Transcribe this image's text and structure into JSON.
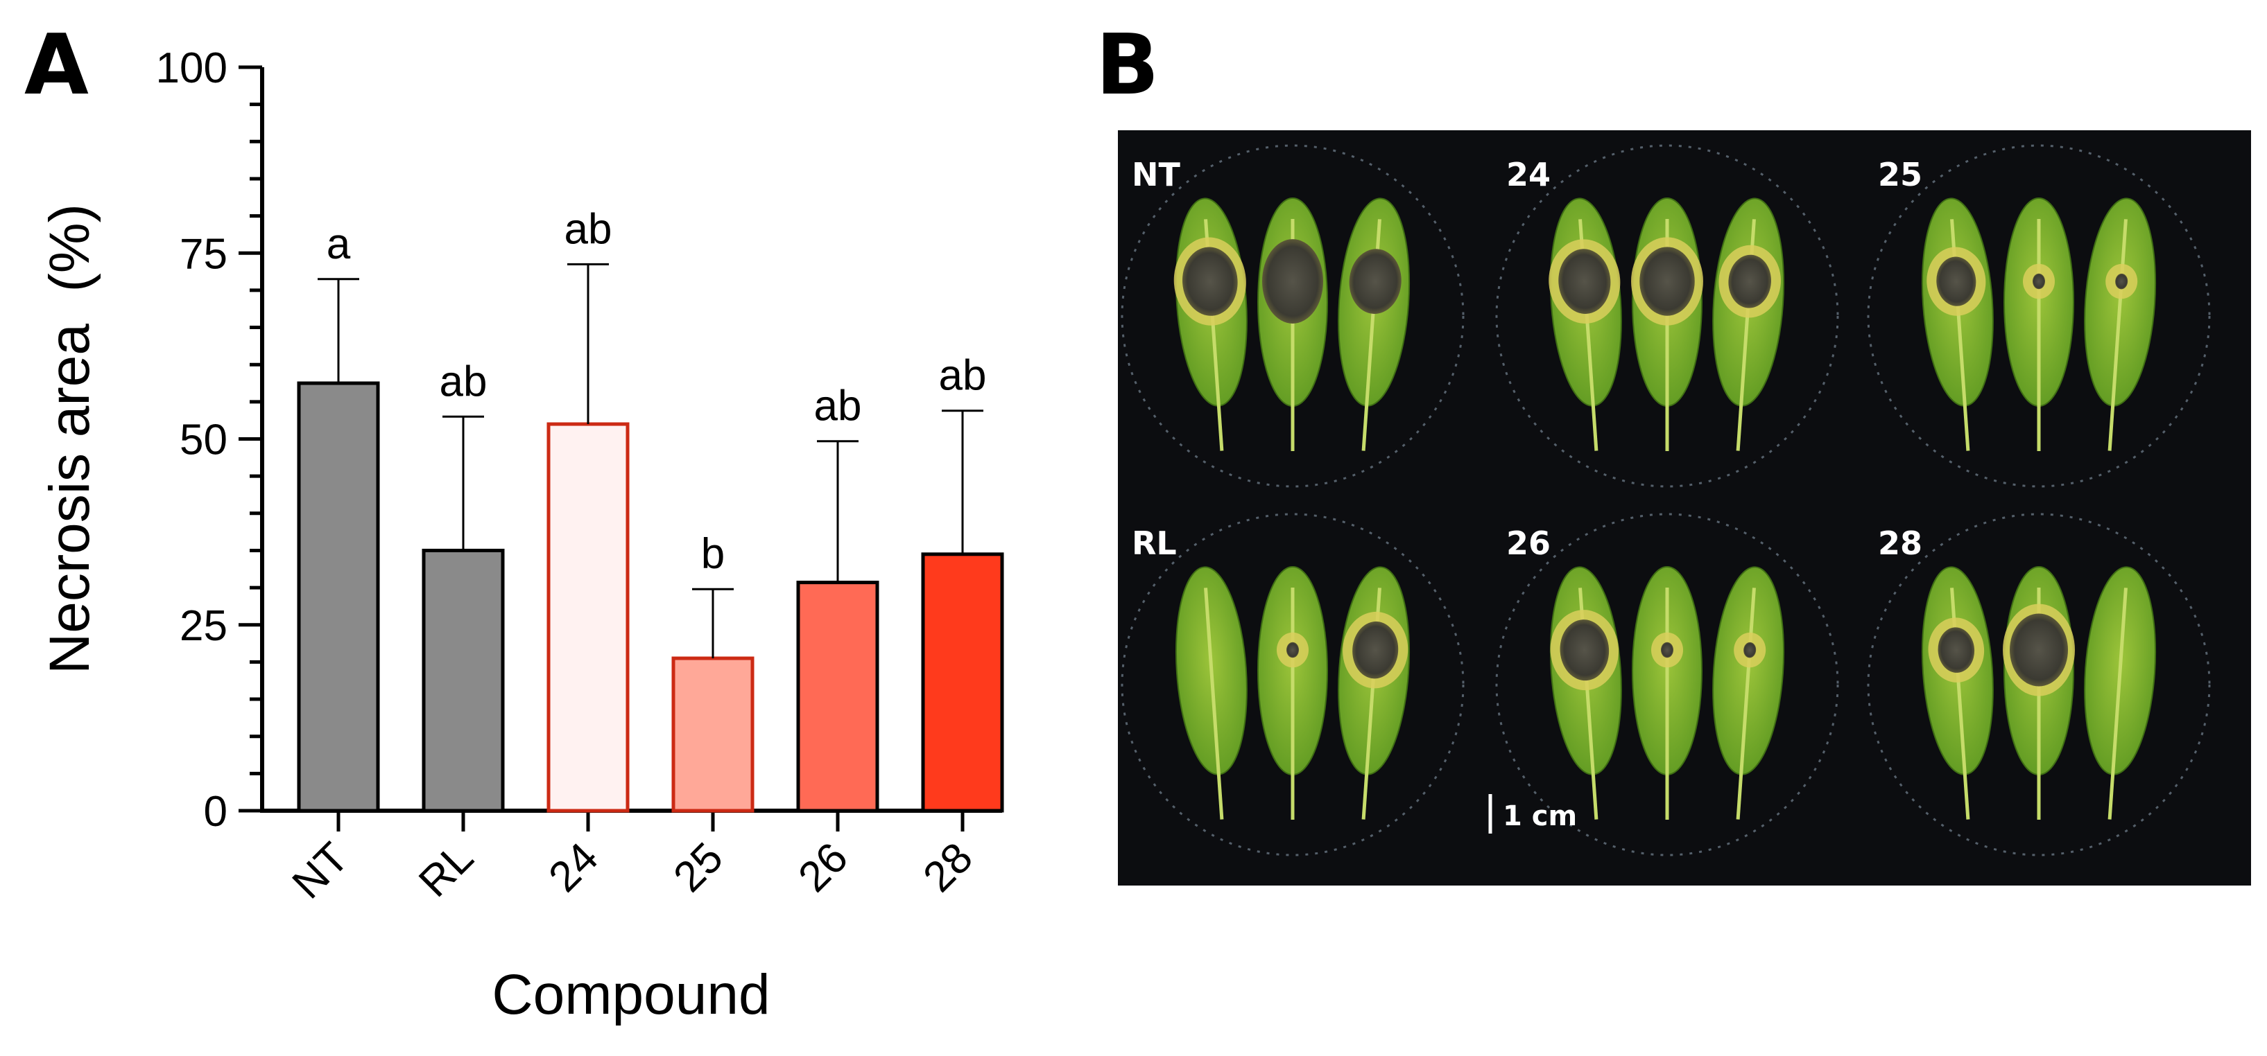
{
  "panel_a": {
    "letter": "A"
  },
  "panel_b": {
    "letter": "B",
    "dish_labels": [
      "NT",
      "24",
      "25",
      "RL",
      "26",
      "28"
    ],
    "scale_bar_label": "1 cm"
  },
  "chart_data": {
    "type": "bar",
    "xlabel": "Compound",
    "ylabel": "Necrosis area  (%)",
    "ylim": [
      0,
      100
    ],
    "yticks": [
      0,
      25,
      50,
      75,
      100
    ],
    "categories": [
      "NT",
      "RL",
      "24",
      "25",
      "26",
      "28"
    ],
    "values": [
      57.5,
      35,
      52,
      20.5,
      30.7,
      34.5
    ],
    "errors": [
      14,
      18,
      21.5,
      9.3,
      19,
      19.3
    ],
    "significance_letters": [
      "a",
      "ab",
      "ab",
      "b",
      "ab",
      "ab"
    ],
    "bar_colors": [
      "#8a8a8a",
      "#8a8a8a",
      "#fff2f1",
      "#ffa898",
      "#ff6a55",
      "#ff3a1c"
    ],
    "bar_edge_colors": [
      "#000000",
      "#000000",
      "#cc2a14",
      "#cc2a14",
      "#000000",
      "#000000"
    ]
  }
}
